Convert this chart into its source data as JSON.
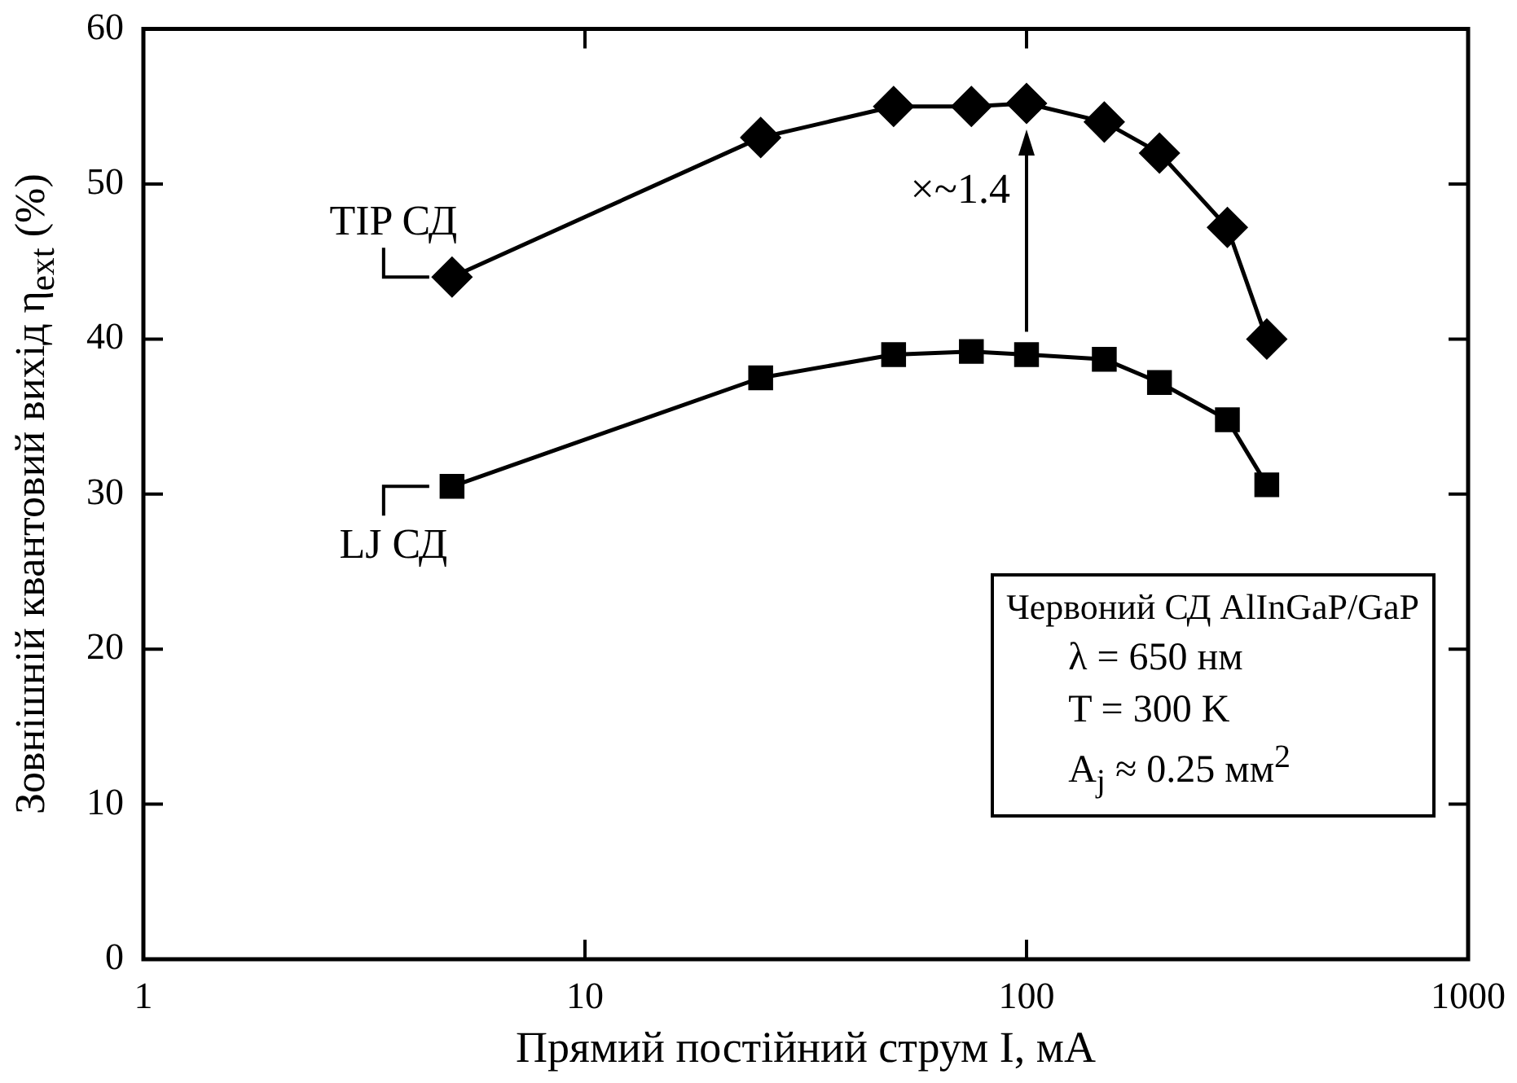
{
  "chart_data": {
    "type": "line",
    "xlabel": "Прямий постійний струм I, мА",
    "ylabel": "Зовнішній квантовий вихід η$_{ext}$ (%)",
    "log": "x",
    "xlim": [
      1,
      1000
    ],
    "xticks": [
      1,
      10,
      100,
      1000
    ],
    "ylim": [
      0,
      60
    ],
    "yticks": [
      0,
      10,
      20,
      30,
      40,
      50,
      60
    ],
    "grid": false,
    "legend": "left",
    "series": [
      {
        "name": "TIP СД",
        "color": "#000000",
        "marker": "diamond",
        "x": [
          5,
          25,
          50,
          75,
          100,
          150,
          200,
          285,
          350
        ],
        "values": [
          44,
          53,
          55,
          55,
          55.2,
          54,
          52,
          47.2,
          40
        ]
      },
      {
        "name": "LJ СД",
        "color": "#000000",
        "marker": "square",
        "x": [
          5,
          25,
          50,
          75,
          100,
          150,
          200,
          285,
          350
        ],
        "values": [
          30.5,
          37.5,
          39,
          39.2,
          39,
          38.7,
          37.2,
          34.8,
          30.6
        ]
      }
    ],
    "annotations": [
      "×~1.4",
      "Червоний СД AlInGaP/GaP",
      "λ = 650 нм",
      "T = 300 K",
      "A$_{j}$ ≈ 0.25 мм$^{2}$"
    ]
  }
}
